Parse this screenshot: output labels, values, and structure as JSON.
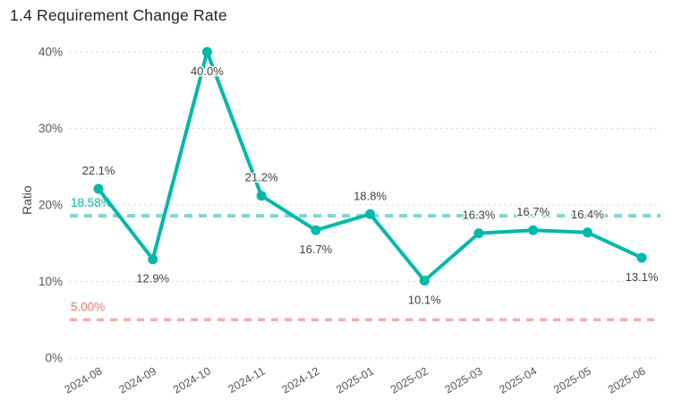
{
  "chart_data": {
    "type": "line",
    "title": "1.4 Requirement Change Rate",
    "ylabel": "Ratio",
    "xlabel": "",
    "categories": [
      "2024-08",
      "2024-09",
      "2024-10",
      "2024-11",
      "2024-12",
      "2025-01",
      "2025-02",
      "2025-03",
      "2025-04",
      "2025-05",
      "2025-06"
    ],
    "series": [
      {
        "name": "Ratio",
        "color": "#01b8aa",
        "values": [
          22.1,
          12.9,
          40.0,
          21.2,
          16.7,
          18.8,
          10.1,
          16.3,
          16.7,
          16.4,
          13.1
        ],
        "value_labels": [
          "22.1%",
          "12.9%",
          "40.0%",
          "21.2%",
          "16.7%",
          "18.8%",
          "10.1%",
          "16.3%",
          "16.7%",
          "16.4%",
          "13.1%"
        ],
        "label_positions": [
          "above",
          "below",
          "below",
          "above",
          "below",
          "above",
          "below",
          "above",
          "above",
          "above",
          "below"
        ]
      }
    ],
    "ylim": [
      0,
      40
    ],
    "yticks": [
      {
        "value": 0,
        "label": "0%"
      },
      {
        "value": 10,
        "label": "10%"
      },
      {
        "value": 20,
        "label": "20%"
      },
      {
        "value": 30,
        "label": "30%"
      },
      {
        "value": 40,
        "label": "40%"
      }
    ],
    "grid": "horizontal-dotted",
    "legend": "none",
    "reference_lines": [
      {
        "name": "average-line",
        "value": 18.58,
        "label": "18.58%",
        "line_color": "#76dad2",
        "label_color": "#01b8aa",
        "width": 4,
        "dash": "9 7"
      },
      {
        "name": "threshold-line",
        "value": 5.0,
        "label": "5.00%",
        "line_color": "#f8aca9",
        "label_color": "#f4736e",
        "width": 3.5,
        "dash": "8 7"
      }
    ]
  }
}
